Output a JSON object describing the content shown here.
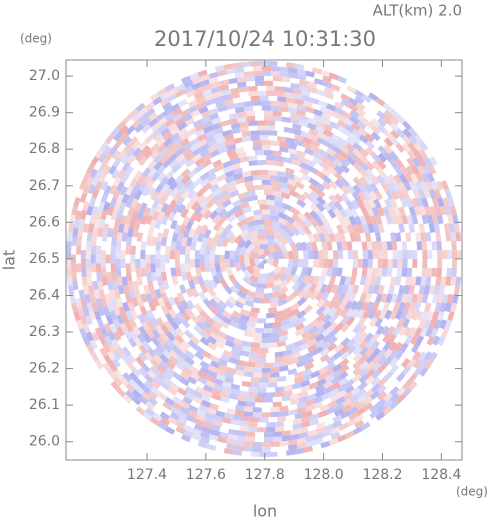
{
  "chart_data": {
    "type": "radar-ppi",
    "title": "2017/10/24 10:31:30",
    "subtitle": "ALT(km) 2.0",
    "x_label": "lon",
    "y_label": "lat",
    "x_unit": "(deg)",
    "y_unit": "(deg)",
    "xlim": [
      127.125,
      128.47
    ],
    "ylim": [
      25.95,
      27.044
    ],
    "xticks": [
      127.4,
      127.6,
      127.8,
      {
        "value": 128,
        "label": "128.0"
      },
      128.2,
      128.4
    ],
    "yticks": [
      {
        "value": 26,
        "label": "26.0"
      },
      26.1,
      26.2,
      26.3,
      26.4,
      26.5,
      26.6,
      26.7,
      26.8,
      26.9,
      {
        "value": 27,
        "label": "27.0"
      }
    ]
  }
}
